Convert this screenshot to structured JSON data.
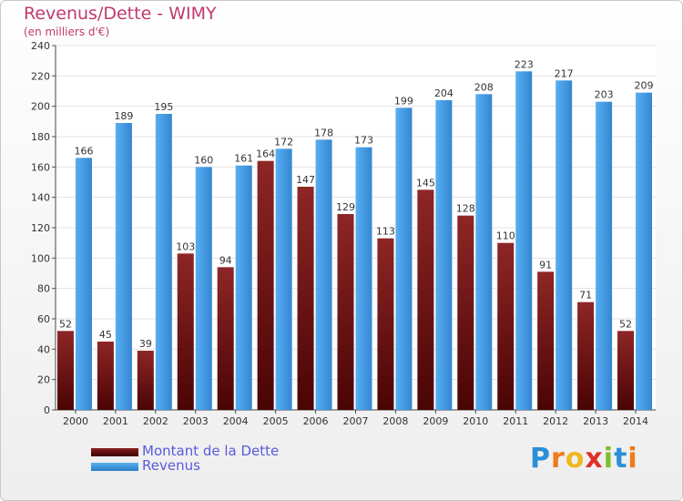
{
  "chart_data": {
    "type": "bar",
    "title": "Revenus/Dette - WIMY",
    "subtitle": "(en milliers d'€)",
    "categories": [
      "2000",
      "2001",
      "2002",
      "2003",
      "2004",
      "2005",
      "2006",
      "2007",
      "2008",
      "2009",
      "2010",
      "2011",
      "2012",
      "2013",
      "2014"
    ],
    "series": [
      {
        "name": "Montant de la Dette",
        "color": "#6e1515",
        "values": [
          52,
          45,
          39,
          103,
          94,
          164,
          147,
          129,
          113,
          145,
          128,
          110,
          91,
          71,
          52
        ]
      },
      {
        "name": "Revenus",
        "color": "#3f96dc",
        "values": [
          166,
          189,
          195,
          160,
          161,
          172,
          178,
          173,
          199,
          204,
          208,
          223,
          217,
          203,
          209
        ]
      }
    ],
    "ylim": [
      0,
      240
    ],
    "yticks": [
      0,
      20,
      40,
      60,
      80,
      100,
      120,
      140,
      160,
      180,
      200,
      220,
      240
    ],
    "grid": true,
    "legend_position": "bottom-left"
  },
  "logo": {
    "text": "Proxiti",
    "letters": [
      "P",
      "r",
      "o",
      "x",
      "i",
      "t",
      "i"
    ],
    "colors": [
      "#2a8fd8",
      "#f07a1a",
      "#f0b820",
      "#e0302a",
      "#7cbf2a",
      "#2a8fd8",
      "#f07a1a"
    ]
  }
}
